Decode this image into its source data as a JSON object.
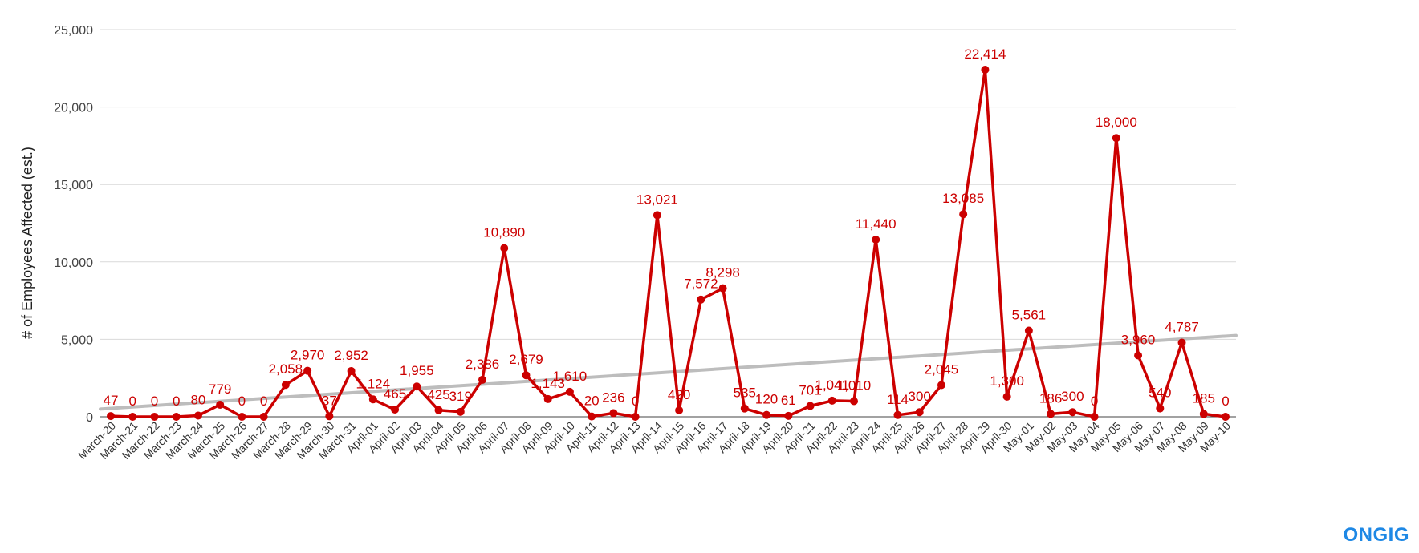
{
  "logo_text": "ONGIG",
  "colors": {
    "series": "#cc0000",
    "trend": "#bdbdbd",
    "grid": "#d9d9d9",
    "logo": "#1e88e5"
  },
  "chart_data": {
    "type": "line",
    "title": "",
    "xlabel": "",
    "ylabel": "# of Employees Affected (est.)",
    "ylim": [
      0,
      25000
    ],
    "yticks": [
      0,
      5000,
      10000,
      15000,
      20000,
      25000
    ],
    "ytick_labels": [
      "0",
      "5,000",
      "10,000",
      "15,000",
      "20,000",
      "25,000"
    ],
    "grid": true,
    "legend": "none",
    "categories": [
      "March-20",
      "March-21",
      "March-22",
      "March-23",
      "March-24",
      "March-25",
      "March-26",
      "March-27",
      "March-28",
      "March-29",
      "March-30",
      "March-31",
      "April-01",
      "April-02",
      "April-03",
      "April-04",
      "April-05",
      "April-06",
      "April-07",
      "April-08",
      "April-09",
      "April-10",
      "April-11",
      "April-12",
      "April-13",
      "April-14",
      "April-15",
      "April-16",
      "April-17",
      "April-18",
      "April-19",
      "April-20",
      "April-21",
      "April-22",
      "April-23",
      "April-24",
      "April-25",
      "April-26",
      "April-27",
      "April-28",
      "April-29",
      "April-30",
      "May-01",
      "May-02",
      "May-03",
      "May-04",
      "May-05",
      "May-06",
      "May-07",
      "May-08",
      "May-09",
      "May-10"
    ],
    "series": [
      {
        "values": [
          47,
          0,
          0,
          0,
          80,
          779,
          0,
          0,
          2058,
          2970,
          37,
          2952,
          1124,
          465,
          1955,
          425,
          319,
          2386,
          10890,
          2679,
          1143,
          1610,
          20,
          236,
          0,
          13021,
          420,
          7572,
          8298,
          535,
          120,
          61,
          701,
          1041,
          1010,
          11440,
          114,
          300,
          2045,
          13085,
          22414,
          1300,
          5561,
          186,
          300,
          0,
          18000,
          3960,
          540,
          4787,
          185,
          0
        ],
        "labels": [
          "47",
          "0",
          "0",
          "0",
          "80",
          "779",
          "0",
          "0",
          "2,058",
          "2,970",
          "37",
          "2,952",
          "1,124",
          "465",
          "1,955",
          "425",
          "319",
          "2,386",
          "10,890",
          "2,679",
          "1,143",
          "1,610",
          "20",
          "236",
          "0",
          "13,021",
          "420",
          "7,572",
          "8,298",
          "535",
          "120",
          "61",
          "701",
          "1,041",
          "1,010",
          "11,440",
          "114",
          "300",
          "2,045",
          "13,085",
          "22,414",
          "1,300",
          "5,561",
          "186",
          "300",
          "0",
          "18,000",
          "3,960",
          "540",
          "4,787",
          "185",
          "0"
        ]
      }
    ],
    "trendline": {
      "type": "linear",
      "start": 500,
      "end": 5250
    }
  }
}
